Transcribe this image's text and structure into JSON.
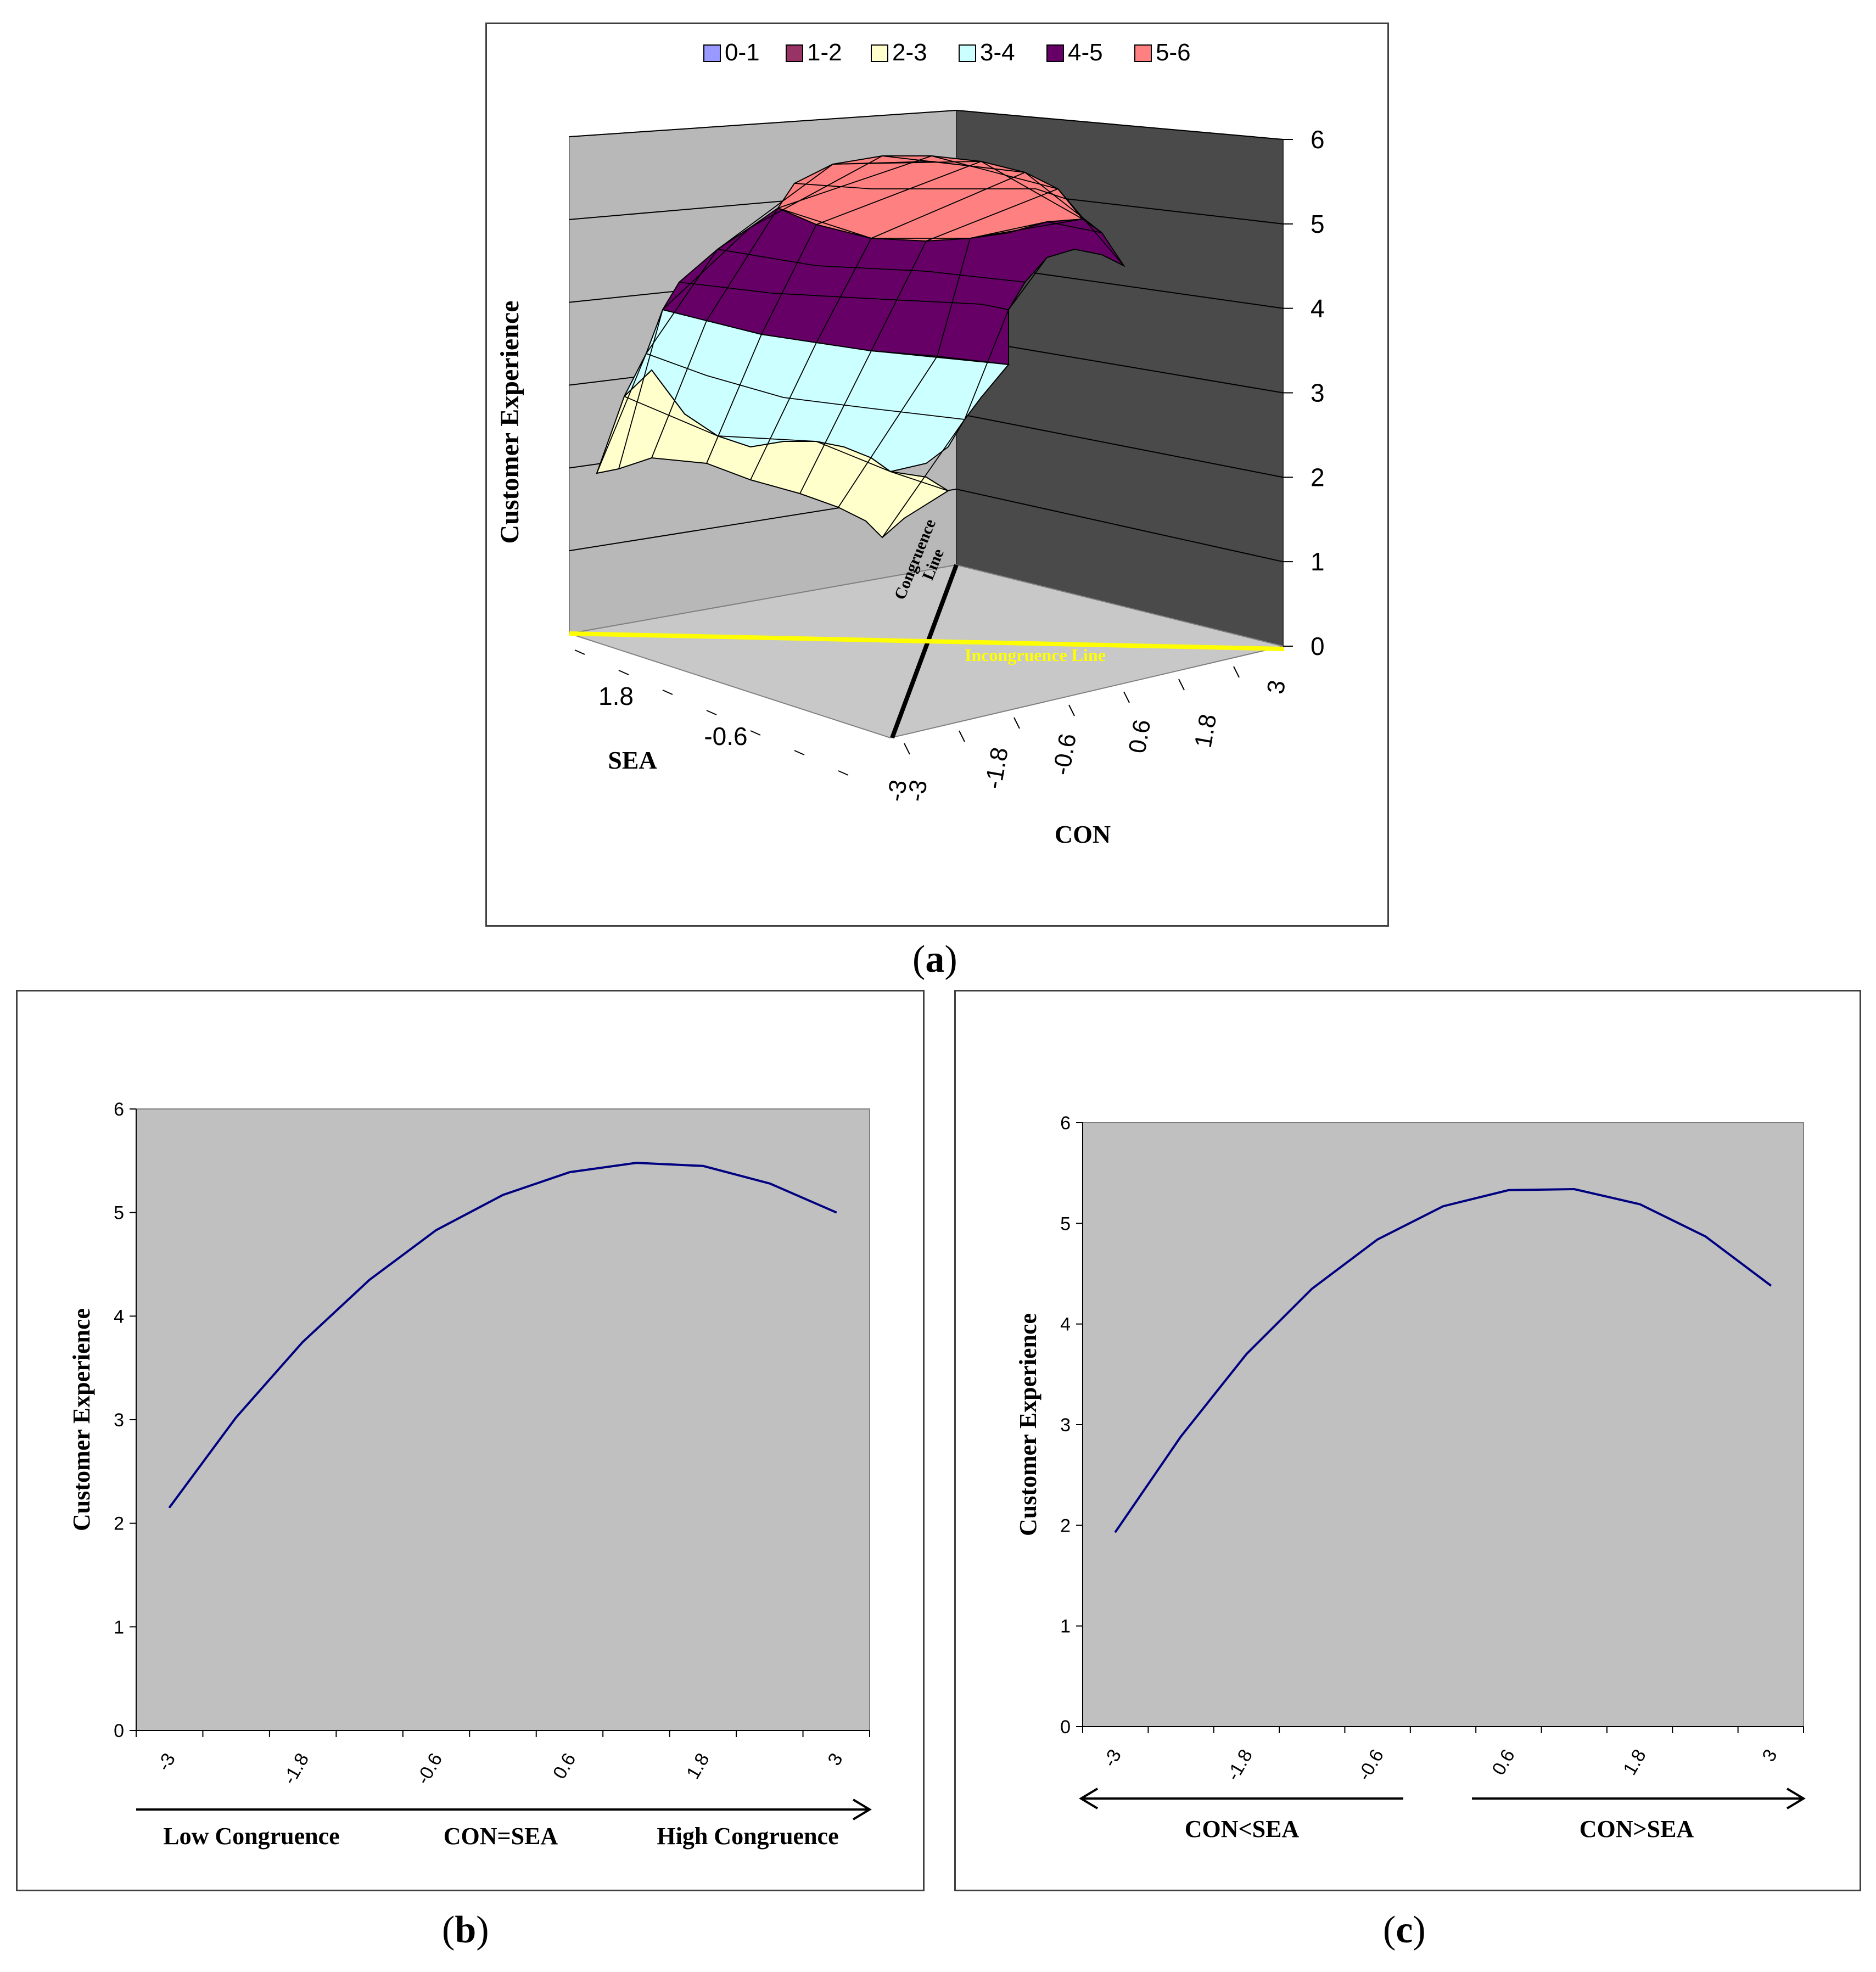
{
  "colors": {
    "plot_bg": "#c0c0c0",
    "curve": "#000080",
    "congruence_line": "#000000",
    "incongruence_line": "#ffff00",
    "wall_dark": "#4a4a4a",
    "wall_light": "#b8b8b8",
    "floor": "#c8c8c8"
  },
  "captions": {
    "a": "a",
    "b": "b",
    "c": "c"
  },
  "chart_data": [
    {
      "id": "a",
      "type": "surface",
      "legend": [
        {
          "label": "0-1",
          "color": "#9999ff"
        },
        {
          "label": "1-2",
          "color": "#993366"
        },
        {
          "label": "2-3",
          "color": "#ffffcc"
        },
        {
          "label": "3-4",
          "color": "#ccffff"
        },
        {
          "label": "4-5",
          "color": "#660066"
        },
        {
          "label": "5-6",
          "color": "#ff8080"
        }
      ],
      "zlabel": "Customer Experience",
      "zticks": [
        "0",
        "1",
        "2",
        "3",
        "4",
        "5",
        "6"
      ],
      "zlim": [
        0,
        6
      ],
      "sea_label": "SEA",
      "sea_ticks": [
        "1.8",
        "-0.6"
      ],
      "con_label": "CON",
      "con_ticks": [
        "-3",
        "-3",
        "-1.8",
        "-0.6",
        "0.6",
        "1.8",
        "3"
      ],
      "congruence_label": [
        "Congruence",
        "Line"
      ],
      "incongruence_label": "Incongruence Line"
    },
    {
      "id": "b",
      "type": "line",
      "x": [
        -3,
        -2.4,
        -1.8,
        -1.2,
        -0.6,
        0,
        0.6,
        1.2,
        1.8,
        2.4,
        3
      ],
      "values": [
        2.15,
        3.02,
        3.75,
        4.35,
        4.83,
        5.17,
        5.39,
        5.48,
        5.45,
        5.28,
        5.0
      ],
      "xticks": [
        "-3",
        "-1.8",
        "-0.6",
        "0.6",
        "1.8",
        "3"
      ],
      "ylabel": "Customer Experience",
      "yticks": [
        "0",
        "1",
        "2",
        "3",
        "4",
        "5",
        "6"
      ],
      "ylim": [
        0,
        6
      ],
      "arrow_labels": [
        "Low Congruence",
        "CON=SEA",
        "High Congruence"
      ]
    },
    {
      "id": "c",
      "type": "line",
      "x": [
        -3,
        -2.4,
        -1.8,
        -1.2,
        -0.6,
        0,
        0.6,
        1.2,
        1.8,
        2.4,
        3
      ],
      "values": [
        1.93,
        2.88,
        3.7,
        4.35,
        4.84,
        5.17,
        5.33,
        5.34,
        5.19,
        4.87,
        4.38
      ],
      "xticks": [
        "-3",
        "-1.8",
        "-0.6",
        "0.6",
        "1.8",
        "3"
      ],
      "ylabel": "Customer Experience",
      "yticks": [
        "0",
        "1",
        "2",
        "3",
        "4",
        "5",
        "6"
      ],
      "ylim": [
        0,
        6
      ],
      "arrow_labels": [
        "CON<SEA",
        "CON>SEA"
      ]
    }
  ]
}
